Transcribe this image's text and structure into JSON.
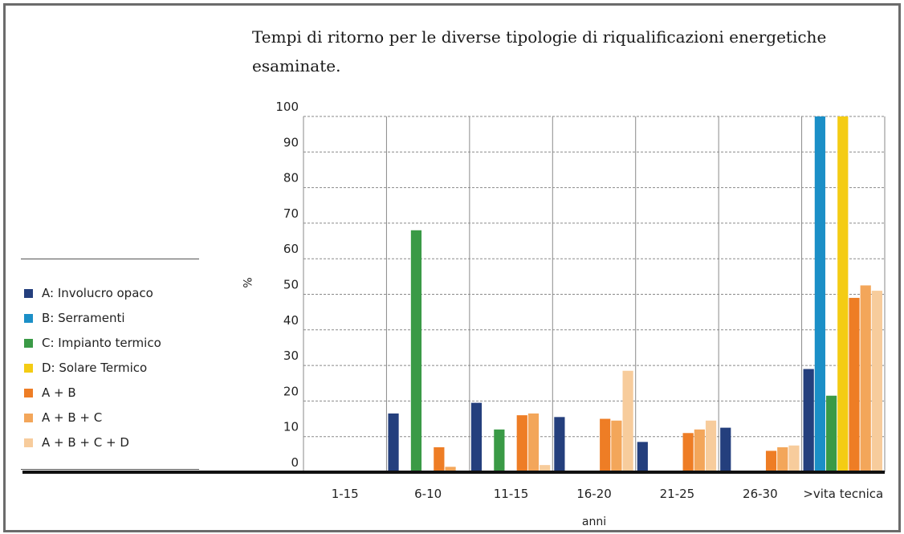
{
  "chart_data": {
    "type": "bar",
    "title": "Tempi di ritorno per le diverse tipologie di riqualificazioni energetiche esaminate.",
    "xlabel": "anni",
    "ylabel": "%",
    "ylim": [
      0,
      100
    ],
    "yticks": [
      0,
      10,
      20,
      30,
      40,
      50,
      60,
      70,
      80,
      90,
      100
    ],
    "grid": true,
    "legend_position": "left",
    "categories": [
      "1-15",
      "6-10",
      "11-15",
      "16-20",
      "21-25",
      "26-30",
      ">vita tecnica"
    ],
    "series": [
      {
        "name": "A: Involucro opaco",
        "color": "#243f7d",
        "values": [
          0,
          16.5,
          19.5,
          15.5,
          8.5,
          12.5,
          29
        ]
      },
      {
        "name": "B: Serramenti",
        "color": "#1b8fc7",
        "values": [
          0,
          0,
          0,
          0,
          0,
          0,
          100
        ]
      },
      {
        "name": "C: Impianto termico",
        "color": "#3a9a46",
        "values": [
          0,
          68,
          12,
          0,
          0,
          0,
          21.5
        ]
      },
      {
        "name": "D: Solare Termico",
        "color": "#f4cc14",
        "values": [
          0,
          0,
          0,
          0,
          0,
          0,
          100
        ]
      },
      {
        "name": "A + B",
        "color": "#ee7d25",
        "values": [
          0,
          7,
          16,
          15,
          11,
          6,
          49
        ]
      },
      {
        "name": "A + B + C",
        "color": "#f3a65a",
        "values": [
          0,
          1.5,
          16.5,
          14.5,
          12,
          7,
          52.5
        ]
      },
      {
        "name": "A + B + C + D",
        "color": "#f7cc9c",
        "values": [
          0,
          0,
          2,
          28.5,
          14.5,
          7.5,
          51
        ]
      }
    ]
  }
}
